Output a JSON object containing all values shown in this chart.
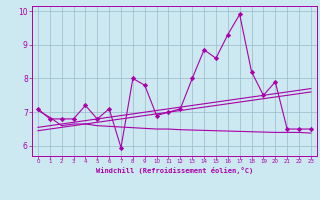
{
  "x_values": [
    0,
    1,
    2,
    3,
    4,
    5,
    6,
    7,
    8,
    9,
    10,
    11,
    12,
    13,
    14,
    15,
    16,
    17,
    18,
    19,
    20,
    21,
    22,
    23
  ],
  "line_main": [
    7.1,
    6.8,
    6.8,
    6.8,
    7.2,
    6.8,
    7.1,
    5.95,
    8.0,
    7.8,
    6.9,
    7.0,
    7.1,
    8.0,
    8.85,
    8.6,
    9.3,
    9.9,
    8.2,
    7.5,
    7.9,
    6.5,
    6.5,
    6.5
  ],
  "line_rise1": [
    6.55,
    6.6,
    6.65,
    6.7,
    6.75,
    6.8,
    6.85,
    6.9,
    6.95,
    7.0,
    7.05,
    7.1,
    7.15,
    7.2,
    7.25,
    7.3,
    7.35,
    7.4,
    7.45,
    7.5,
    7.55,
    7.6,
    7.65,
    7.7
  ],
  "line_rise2": [
    6.45,
    6.5,
    6.55,
    6.6,
    6.65,
    6.7,
    6.75,
    6.8,
    6.85,
    6.9,
    6.95,
    7.0,
    7.05,
    7.1,
    7.15,
    7.2,
    7.25,
    7.3,
    7.35,
    7.4,
    7.45,
    7.5,
    7.55,
    7.6
  ],
  "line_flat": [
    7.05,
    6.85,
    6.6,
    6.65,
    6.65,
    6.6,
    6.58,
    6.56,
    6.54,
    6.52,
    6.5,
    6.5,
    6.48,
    6.47,
    6.46,
    6.45,
    6.44,
    6.43,
    6.42,
    6.41,
    6.4,
    6.4,
    6.4,
    6.38
  ],
  "line_color": "#aa00aa",
  "bg_color": "#cce8f0",
  "grid_color": "#99bbcc",
  "xlabel": "Windchill (Refroidissement éolien,°C)",
  "ylim": [
    5.7,
    10.15
  ],
  "xlim": [
    -0.5,
    23.5
  ],
  "yticks": [
    6,
    7,
    8,
    9,
    10
  ],
  "xticks": [
    0,
    1,
    2,
    3,
    4,
    5,
    6,
    7,
    8,
    9,
    10,
    11,
    12,
    13,
    14,
    15,
    16,
    17,
    18,
    19,
    20,
    21,
    22,
    23
  ],
  "figsize": [
    3.2,
    2.0
  ],
  "dpi": 100
}
